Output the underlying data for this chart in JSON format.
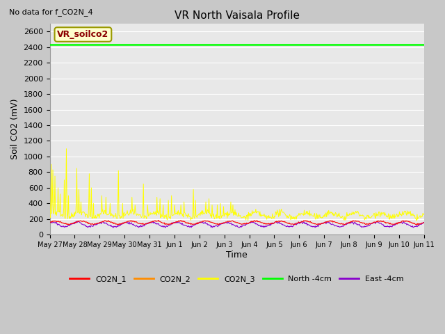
{
  "title": "VR North Vaisala Profile",
  "no_data_label": "No data for f_CO2N_4",
  "annotation_label": "VR_soilco2",
  "ylabel": "Soil CO2 (mV)",
  "xlabel": "Time",
  "ylim": [
    0,
    2700
  ],
  "yticks": [
    0,
    200,
    400,
    600,
    800,
    1000,
    1200,
    1400,
    1600,
    1800,
    2000,
    2200,
    2400,
    2600
  ],
  "fig_bg_color": "#c8c8c8",
  "plot_bg_color": "#e8e8e8",
  "grid_color": "#ffffff",
  "colors": {
    "CO2N_1": "#ff0000",
    "CO2N_2": "#ff8c00",
    "CO2N_3": "#ffff00",
    "North_4cm": "#00ff00",
    "East_4cm": "#8800cc"
  },
  "legend_labels": [
    "CO2N_1",
    "CO2N_2",
    "CO2N_3",
    "North -4cm",
    "East -4cm"
  ],
  "north_4cm_value": 2430,
  "x_tick_labels": [
    "May 27",
    "May 28",
    "May 29",
    "May 30",
    "May 31",
    "Jun 1",
    "Jun 2",
    "Jun 3",
    "Jun 4",
    "Jun 5",
    "Jun 6",
    "Jun 7",
    "Jun 8",
    "Jun 9",
    "Jun 10",
    "Jun 11"
  ]
}
